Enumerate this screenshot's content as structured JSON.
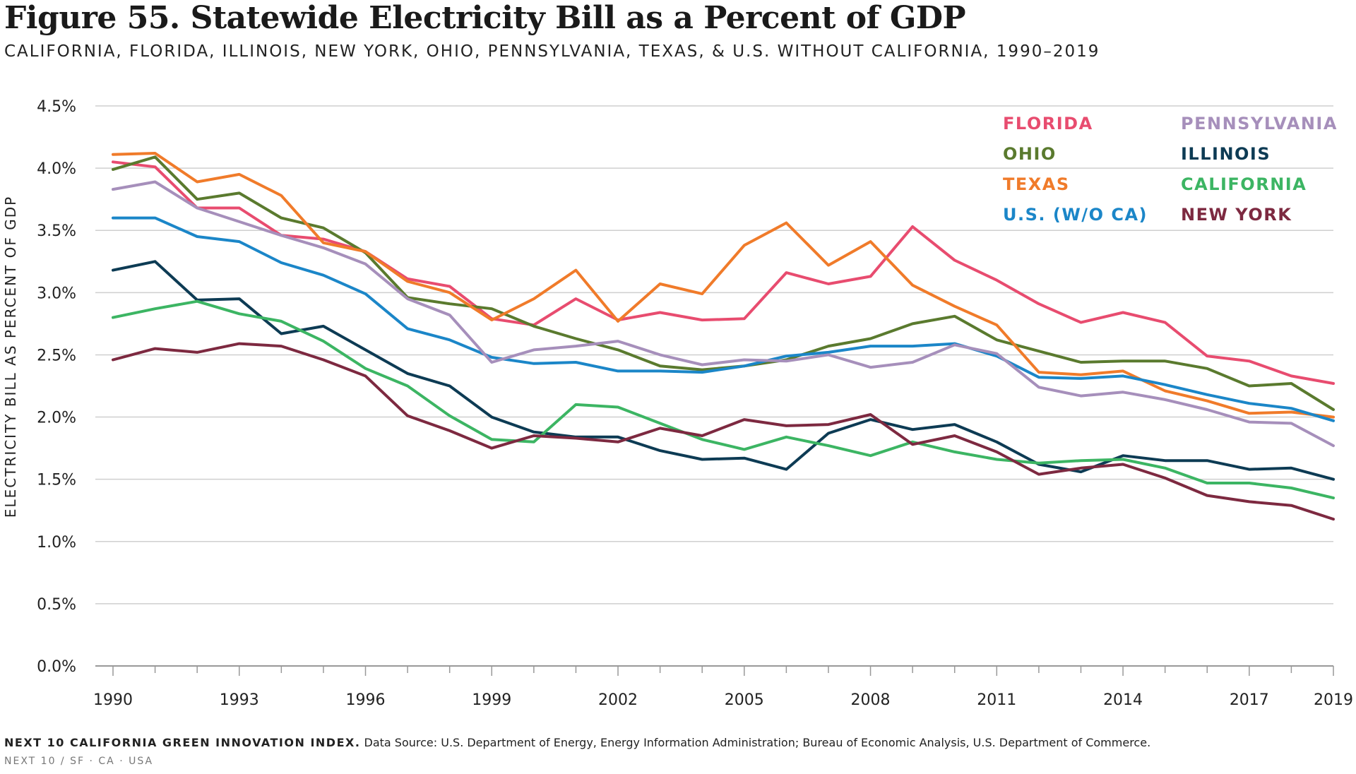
{
  "header": {
    "title": "Figure 55. Statewide Electricity Bill as a Percent of GDP",
    "subtitle": "CALIFORNIA, FLORIDA, ILLINOIS, NEW YORK, OHIO, PENNSYLVANIA, TEXAS, & U.S. WITHOUT CALIFORNIA, 1990–2019"
  },
  "footer": {
    "brand": "NEXT 10 CALIFORNIA GREEN INNOVATION INDEX.",
    "source": "Data Source: U.S. Department of Energy, Energy Information Administration; Bureau of Economic Analysis, U.S. Department of Commerce.",
    "tagline": "NEXT 10 / SF · CA · USA"
  },
  "chart_data": {
    "type": "line",
    "title": "Figure 55. Statewide Electricity Bill as a Percent of GDP",
    "subtitle": "CALIFORNIA, FLORIDA, ILLINOIS, NEW YORK, OHIO, PENNSYLVANIA, TEXAS, & U.S. WITHOUT CALIFORNIA, 1990–2019",
    "xlabel": "",
    "ylabel": "ELECTRICITY BILL AS PERCENT OF GDP",
    "x": [
      1990,
      1991,
      1992,
      1993,
      1994,
      1995,
      1996,
      1997,
      1998,
      1999,
      2000,
      2001,
      2002,
      2003,
      2004,
      2005,
      2006,
      2007,
      2008,
      2009,
      2010,
      2011,
      2012,
      2013,
      2014,
      2015,
      2016,
      2017,
      2018,
      2019
    ],
    "x_tick_labels": [
      "1990",
      "1993",
      "1996",
      "1999",
      "2002",
      "2005",
      "2008",
      "2011",
      "2014",
      "2017",
      "2019"
    ],
    "x_ticks": [
      1990,
      1993,
      1996,
      1999,
      2002,
      2005,
      2008,
      2011,
      2014,
      2017,
      2019
    ],
    "ylim": [
      0,
      4.5
    ],
    "y_ticks": [
      0,
      0.5,
      1.0,
      1.5,
      2.0,
      2.5,
      3.0,
      3.5,
      4.0,
      4.5
    ],
    "y_tick_labels": [
      "0.0%",
      "0.5%",
      "1.0%",
      "1.5%",
      "2.0%",
      "2.5%",
      "3.0%",
      "3.5%",
      "4.0%",
      "4.5%"
    ],
    "grid": "horizontal",
    "legend_position": "top-right",
    "series": [
      {
        "name": "FLORIDA",
        "color": "#e84c6f",
        "values": [
          4.05,
          4.01,
          3.68,
          3.68,
          3.46,
          3.43,
          3.33,
          3.11,
          3.05,
          2.79,
          2.74,
          2.95,
          2.78,
          2.84,
          2.78,
          2.79,
          3.16,
          3.07,
          3.13,
          3.53,
          3.26,
          3.1,
          2.91,
          2.76,
          2.84,
          2.76,
          2.49,
          2.45,
          2.33,
          2.27
        ]
      },
      {
        "name": "OHIO",
        "color": "#5a7a2e",
        "values": [
          3.99,
          4.09,
          3.75,
          3.8,
          3.6,
          3.52,
          3.32,
          2.96,
          2.91,
          2.87,
          2.73,
          2.63,
          2.54,
          2.41,
          2.38,
          2.41,
          2.46,
          2.57,
          2.63,
          2.75,
          2.81,
          2.62,
          2.53,
          2.44,
          2.45,
          2.45,
          2.39,
          2.25,
          2.27,
          2.06
        ]
      },
      {
        "name": "TEXAS",
        "color": "#f07b2a",
        "values": [
          4.11,
          4.12,
          3.89,
          3.95,
          3.78,
          3.4,
          3.33,
          3.09,
          3.0,
          2.78,
          2.95,
          3.18,
          2.77,
          3.07,
          2.99,
          3.38,
          3.56,
          3.22,
          3.41,
          3.06,
          2.89,
          2.74,
          2.36,
          2.34,
          2.37,
          2.21,
          2.13,
          2.03,
          2.04,
          2.0
        ]
      },
      {
        "name": "U.S. (W/O CA)",
        "color": "#1b86c8",
        "values": [
          3.6,
          3.6,
          3.45,
          3.41,
          3.24,
          3.14,
          2.99,
          2.71,
          2.62,
          2.48,
          2.43,
          2.44,
          2.37,
          2.37,
          2.36,
          2.41,
          2.49,
          2.52,
          2.57,
          2.57,
          2.59,
          2.49,
          2.32,
          2.31,
          2.33,
          2.26,
          2.18,
          2.11,
          2.07,
          1.97
        ]
      },
      {
        "name": "PENNSYLVANIA",
        "color": "#a68fbb",
        "values": [
          3.83,
          3.89,
          3.68,
          3.57,
          3.46,
          3.36,
          3.23,
          2.95,
          2.82,
          2.44,
          2.54,
          2.57,
          2.61,
          2.5,
          2.42,
          2.46,
          2.45,
          2.5,
          2.4,
          2.44,
          2.58,
          2.51,
          2.24,
          2.17,
          2.2,
          2.14,
          2.06,
          1.96,
          1.95,
          1.77
        ]
      },
      {
        "name": "ILLINOIS",
        "color": "#0d3b54",
        "values": [
          3.18,
          3.25,
          2.94,
          2.95,
          2.67,
          2.73,
          2.54,
          2.35,
          2.25,
          2.0,
          1.88,
          1.84,
          1.84,
          1.73,
          1.66,
          1.67,
          1.58,
          1.87,
          1.98,
          1.9,
          1.94,
          1.8,
          1.62,
          1.56,
          1.69,
          1.65,
          1.65,
          1.58,
          1.59,
          1.5
        ]
      },
      {
        "name": "CALIFORNIA",
        "color": "#3cb563",
        "values": [
          2.8,
          2.87,
          2.93,
          2.83,
          2.77,
          2.61,
          2.39,
          2.25,
          2.01,
          1.82,
          1.8,
          2.1,
          2.08,
          1.95,
          1.82,
          1.74,
          1.84,
          1.77,
          1.69,
          1.8,
          1.72,
          1.66,
          1.63,
          1.65,
          1.66,
          1.59,
          1.47,
          1.47,
          1.43,
          1.35
        ]
      },
      {
        "name": "NEW YORK",
        "color": "#7d2940",
        "values": [
          2.46,
          2.55,
          2.52,
          2.59,
          2.57,
          2.46,
          2.33,
          2.01,
          1.89,
          1.75,
          1.85,
          1.83,
          1.8,
          1.91,
          1.85,
          1.98,
          1.93,
          1.94,
          2.02,
          1.78,
          1.85,
          1.72,
          1.54,
          1.59,
          1.62,
          1.51,
          1.37,
          1.32,
          1.29,
          1.18
        ]
      }
    ]
  }
}
